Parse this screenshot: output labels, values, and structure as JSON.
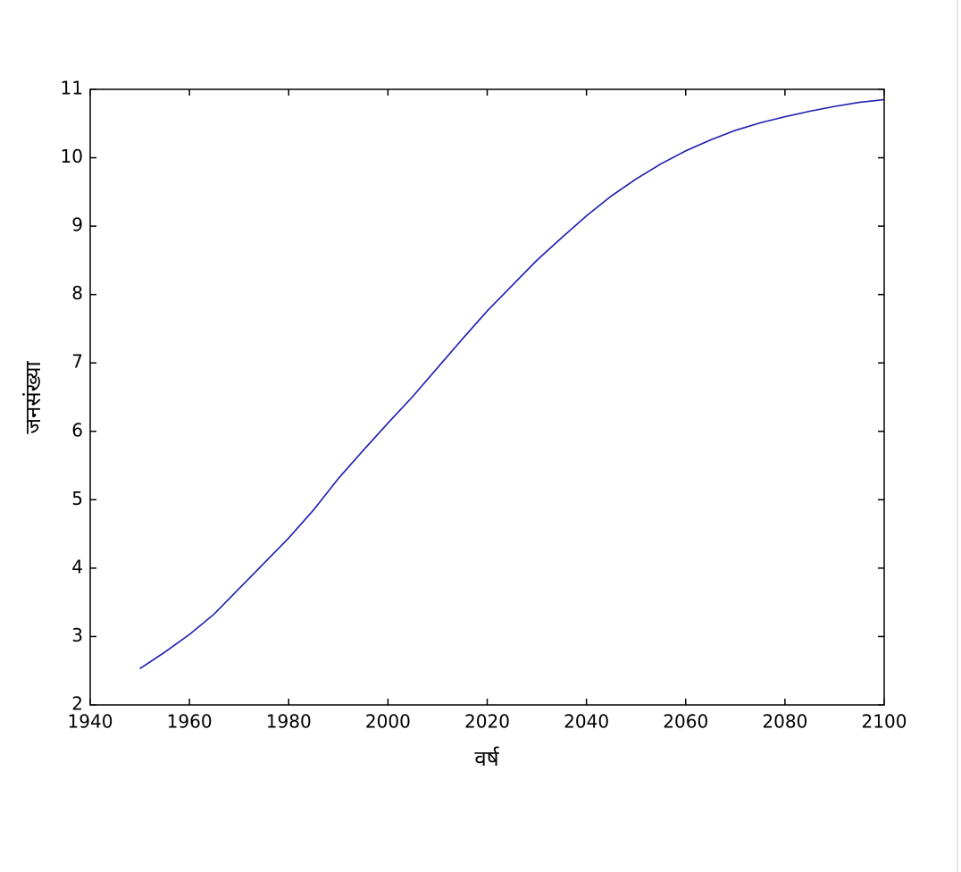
{
  "chart_data": {
    "type": "line",
    "x_label": "वर्ष",
    "y_label": "जनसंख्या",
    "x": [
      1950,
      1955,
      1960,
      1965,
      1970,
      1975,
      1980,
      1985,
      1990,
      1995,
      2000,
      2005,
      2010,
      2015,
      2020,
      2025,
      2030,
      2035,
      2040,
      2045,
      2050,
      2055,
      2060,
      2065,
      2070,
      2075,
      2080,
      2085,
      2090,
      2095,
      2100
    ],
    "series": [
      {
        "color": "#1c1cb0",
        "values": [
          2.53,
          2.77,
          3.03,
          3.33,
          3.7,
          4.07,
          4.44,
          4.85,
          5.31,
          5.72,
          6.12,
          6.51,
          6.93,
          7.35,
          7.76,
          8.13,
          8.5,
          8.83,
          9.15,
          9.44,
          9.69,
          9.91,
          10.1,
          10.26,
          10.4,
          10.51,
          10.6,
          10.68,
          10.75,
          10.81,
          10.85
        ]
      }
    ],
    "xlim": [
      1940,
      2100
    ],
    "xticks": [
      1940,
      1960,
      1980,
      2000,
      2020,
      2040,
      2060,
      2080,
      2100
    ],
    "ylim": [
      2,
      11
    ],
    "yticks": [
      2,
      3,
      4,
      5,
      6,
      7,
      8,
      9,
      10,
      11
    ],
    "grid": false
  }
}
